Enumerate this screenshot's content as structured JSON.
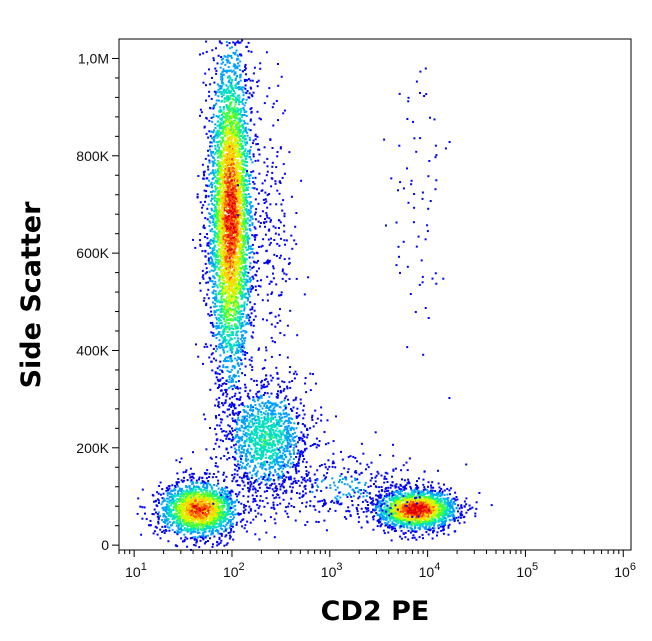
{
  "chart_data": {
    "type": "scatter",
    "style": "density-dot-plot",
    "xlabel": "CD2 PE",
    "ylabel": "Side Scatter",
    "xscale": "log",
    "xlim": [
      7,
      1200000
    ],
    "ylim": [
      -10000,
      1040000
    ],
    "x_ticks": [
      {
        "value": 10,
        "base": "10",
        "exp": "1"
      },
      {
        "value": 100,
        "base": "10",
        "exp": "2"
      },
      {
        "value": 1000,
        "base": "10",
        "exp": "3"
      },
      {
        "value": 10000,
        "base": "10",
        "exp": "4"
      },
      {
        "value": 100000,
        "base": "10",
        "exp": "5"
      },
      {
        "value": 1000000,
        "base": "10",
        "exp": "6"
      }
    ],
    "y_ticks": [
      {
        "value": 0,
        "label": "0"
      },
      {
        "value": 200000,
        "label": "200K"
      },
      {
        "value": 400000,
        "label": "400K"
      },
      {
        "value": 600000,
        "label": "600K"
      },
      {
        "value": 800000,
        "label": "800K"
      },
      {
        "value": 1000000,
        "label": "1,0M"
      }
    ],
    "density_colors": [
      "#0000ff",
      "#00a0ff",
      "#00e0c0",
      "#40ff40",
      "#d0ff00",
      "#ffd000",
      "#ff5000",
      "#e00000"
    ],
    "populations": [
      {
        "cx": 45,
        "cy": 75000,
        "sx": 0.2,
        "sy": 28000,
        "n": 1900,
        "peak": 0.85
      },
      {
        "cx": 95,
        "cy": 680000,
        "sx": 0.11,
        "sy": 170000,
        "n": 4200,
        "peak": 0.9
      },
      {
        "cx": 7500,
        "cy": 75000,
        "sx": 0.2,
        "sy": 20000,
        "n": 1900,
        "peak": 1.0
      },
      {
        "cx": 220,
        "cy": 220000,
        "sx": 0.22,
        "sy": 60000,
        "n": 1300,
        "peak": 0.35
      },
      {
        "cx": 1400,
        "cy": 120000,
        "sx": 0.45,
        "sy": 35000,
        "n": 350,
        "peak": 0.15
      },
      {
        "cx": 8000,
        "cy": 700000,
        "sx": 0.15,
        "sy": 150000,
        "n": 70,
        "peak": 0.05
      },
      {
        "cx": 250,
        "cy": 650000,
        "sx": 0.12,
        "sy": 150000,
        "n": 220,
        "peak": 0.1
      }
    ]
  }
}
